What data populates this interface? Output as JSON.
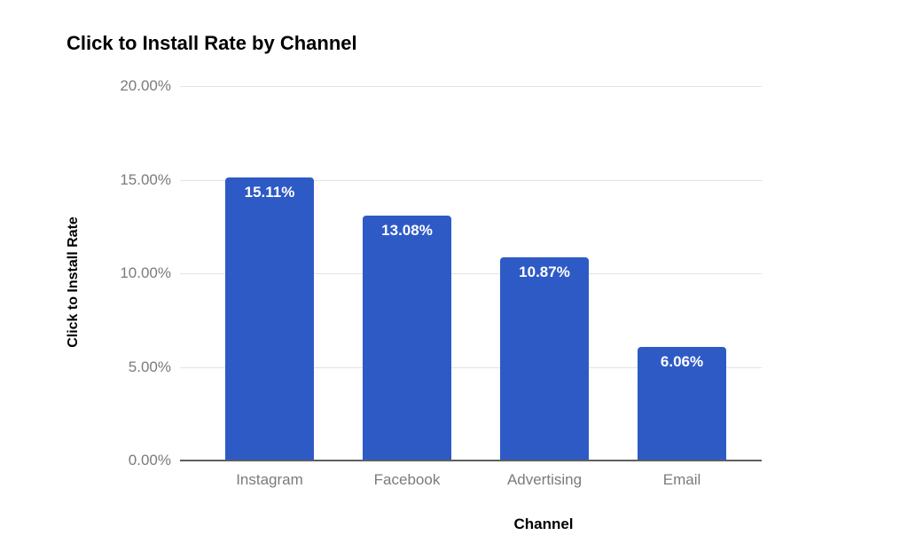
{
  "page": {
    "background": "#ffffff"
  },
  "chart_data": {
    "type": "bar",
    "title": "Click to Install Rate by Channel",
    "xlabel": "Channel",
    "ylabel": "Click to Install Rate",
    "categories": [
      "Instagram",
      "Facebook",
      "Advertising",
      "Email"
    ],
    "values": [
      15.11,
      13.08,
      10.87,
      6.06
    ],
    "value_labels": [
      "15.11%",
      "13.08%",
      "10.87%",
      "6.06%"
    ],
    "ylim": [
      0,
      20
    ],
    "y_ticks": [
      {
        "value": 20,
        "label": "20.00%"
      },
      {
        "value": 15,
        "label": "15.00%"
      },
      {
        "value": 10,
        "label": "10.00%"
      },
      {
        "value": 5,
        "label": "5.00%"
      },
      {
        "value": 0,
        "label": "0.00%"
      }
    ],
    "grid": "horizontal",
    "legend": "none",
    "colors": {
      "bar": "#2e5ac6",
      "value_label": "#ffffff",
      "gridline": "#e3e3e3",
      "axis_line": "#5f5f5f",
      "tick_text": "#7b7b7b",
      "title_text": "#000000",
      "background": "#ffffff"
    }
  }
}
